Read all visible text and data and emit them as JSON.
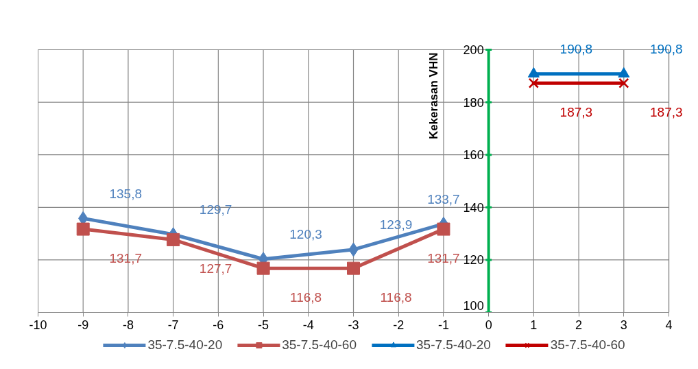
{
  "chart_data": {
    "type": "line",
    "ylabel": "Kekerasan VHN",
    "xlim": [
      -10,
      4
    ],
    "xticks": [
      -10,
      -9,
      -8,
      -7,
      -6,
      -5,
      -4,
      -3,
      -2,
      -1,
      0,
      1,
      2,
      3,
      4
    ],
    "ylim": [
      100,
      200
    ],
    "yticks": [
      100,
      120,
      140,
      160,
      180,
      200
    ],
    "grid": true,
    "legend": "bottom",
    "line_style": "solid",
    "series": [
      {
        "name": "35-7.5-40-20",
        "color": "#4f81bd",
        "marker": "diamond",
        "x": [
          -9,
          -7,
          -5,
          -3,
          -1
        ],
        "values": [
          135.8,
          129.7,
          120.3,
          123.9,
          133.7
        ],
        "value_labels": [
          "135,8",
          "129,7",
          "120,3",
          "123,9",
          "133,7"
        ]
      },
      {
        "name": "35-7.5-40-60",
        "color": "#c0504d",
        "marker": "square",
        "x": [
          -9,
          -7,
          -5,
          -3,
          -1
        ],
        "values": [
          131.7,
          127.7,
          116.8,
          116.8,
          131.7
        ],
        "value_labels": [
          "131,7",
          "127,7",
          "116,8",
          "116,8",
          "131,7"
        ]
      },
      {
        "name": "35-7.5-40-20",
        "color": "#0070c0",
        "marker": "triangle",
        "x": [
          1,
          3
        ],
        "values": [
          190.8,
          190.8
        ],
        "value_labels": [
          "190,8",
          "190,8"
        ]
      },
      {
        "name": "35-7.5-40-60",
        "color": "#c00000",
        "marker": "cross",
        "x": [
          1,
          3
        ],
        "values": [
          187.3,
          187.3
        ],
        "value_labels": [
          "187,3",
          "187,3"
        ]
      }
    ]
  }
}
